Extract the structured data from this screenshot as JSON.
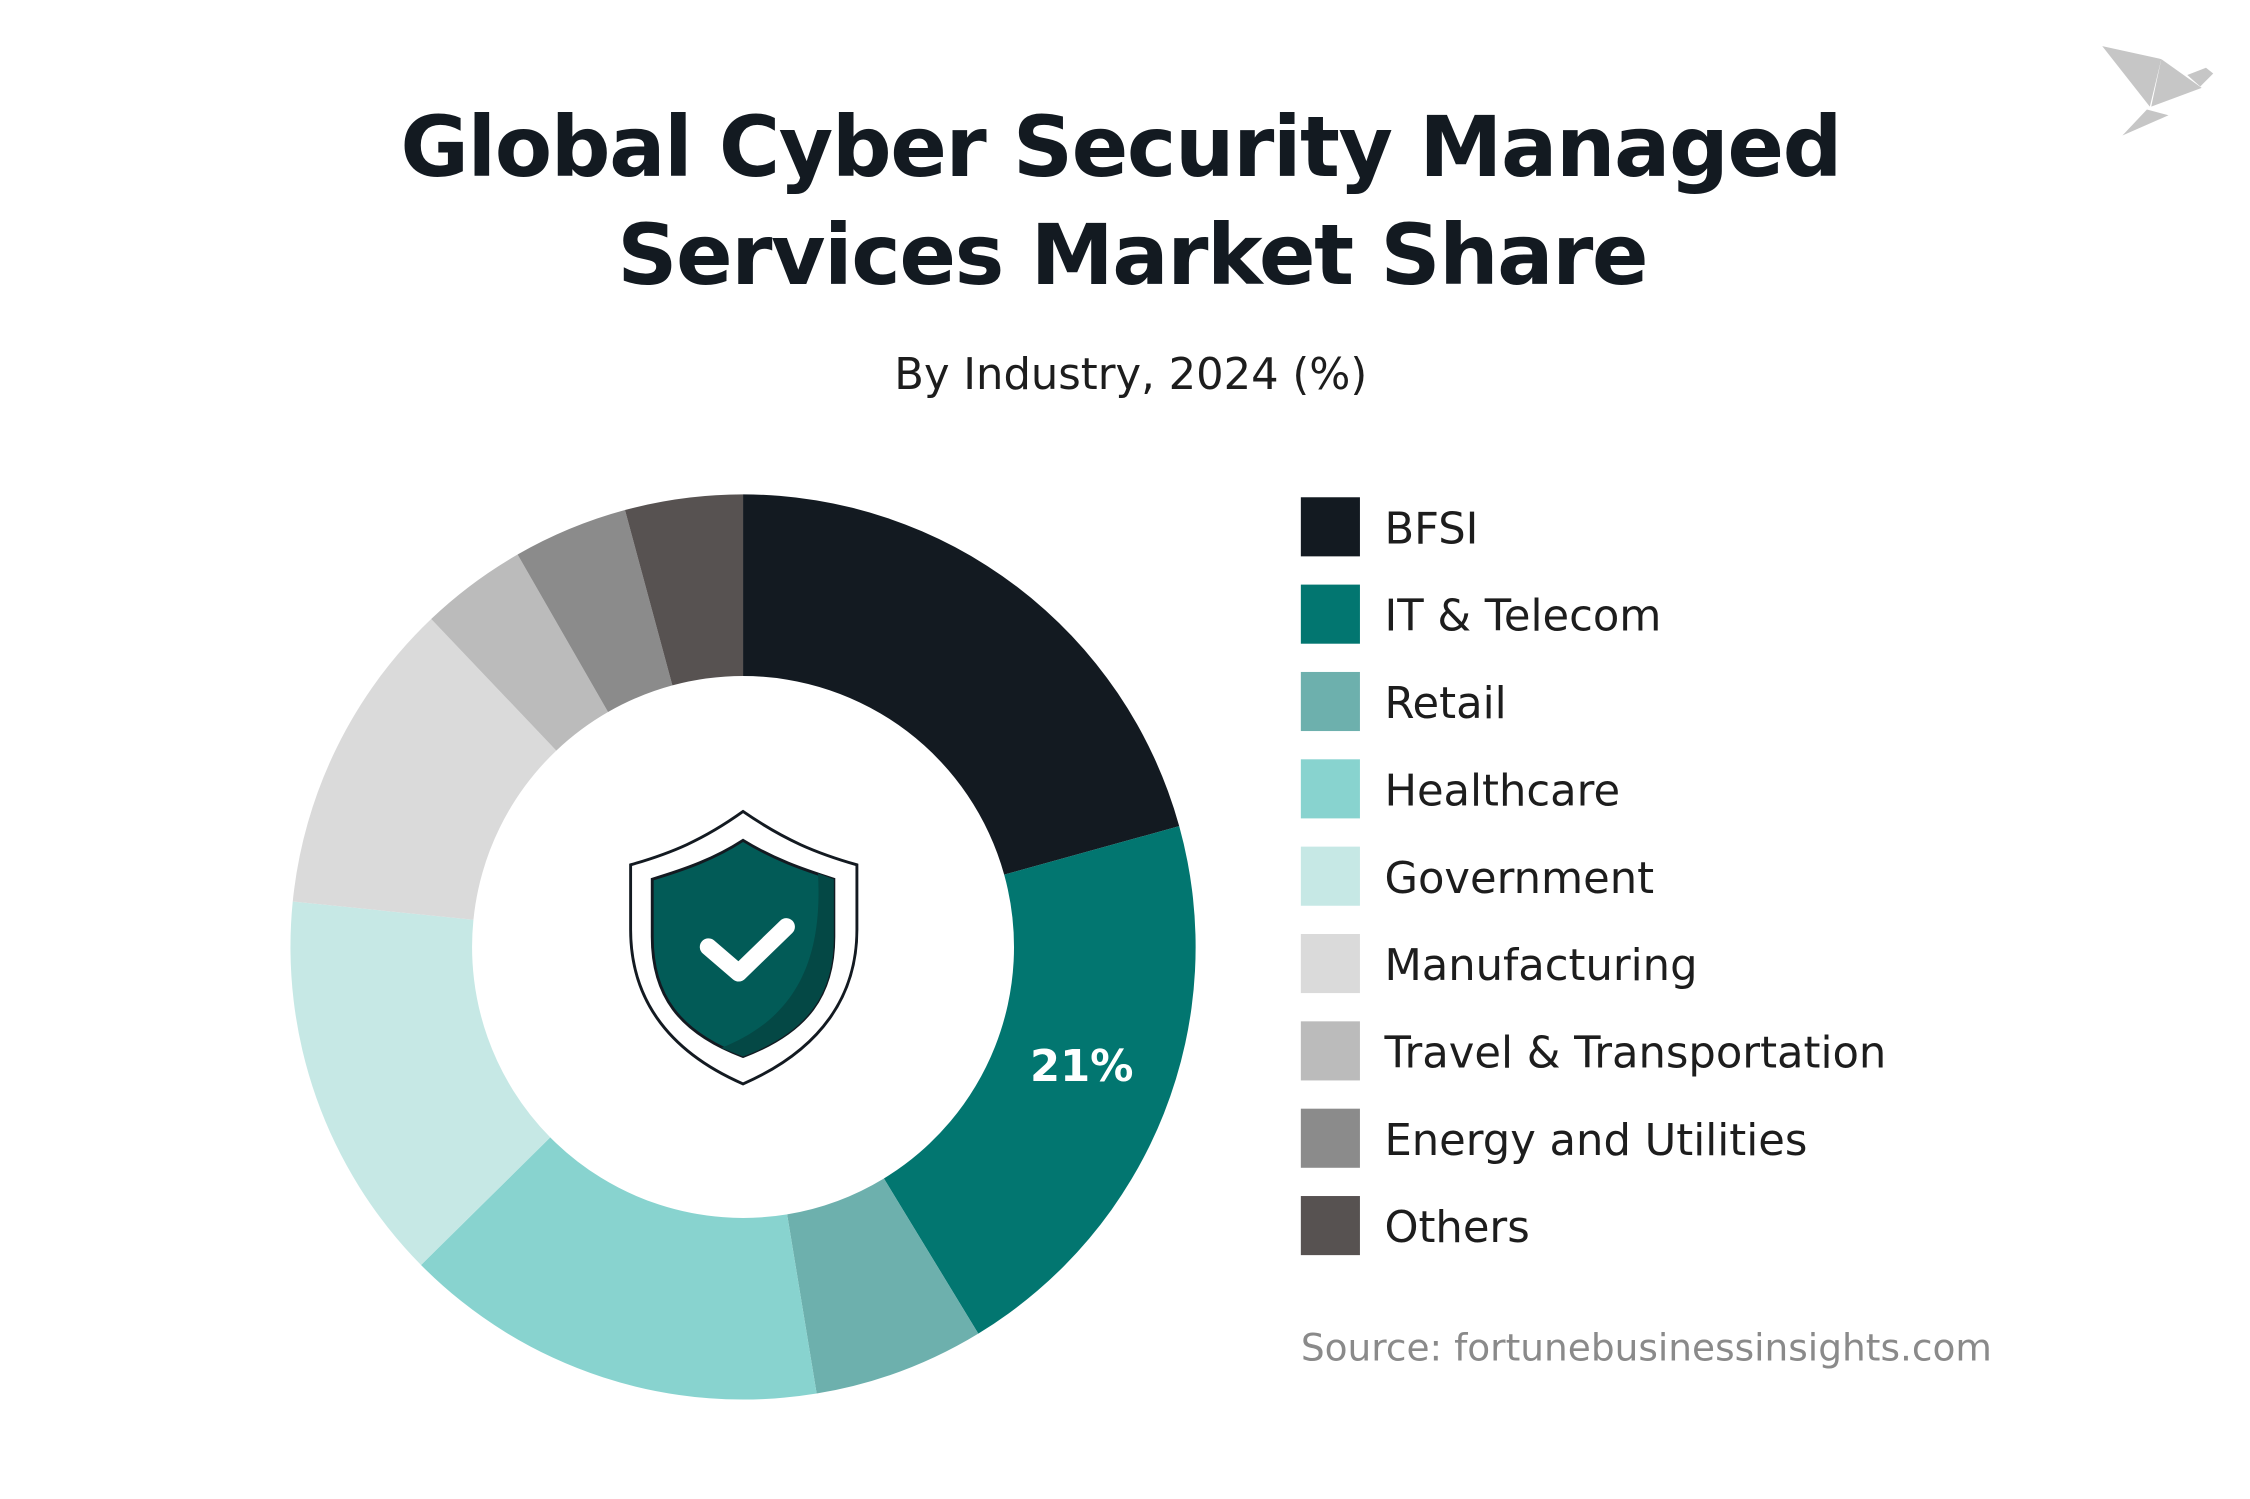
{
  "chart_data": {
    "type": "pie",
    "variant": "donut",
    "title": "Global Cyber Security Managed Services Market Share",
    "title_lines": [
      "Global Cyber Security Managed",
      "Services Market Share"
    ],
    "subtitle": "By Industry, 2024 (%)",
    "legend_position": "right",
    "categories": [
      "BFSI",
      "IT & Telecom",
      "Retail",
      "Healthcare",
      "Government",
      "Manufacturing",
      "Travel & Transportation",
      "Energy and Utilities",
      "Others"
    ],
    "values": [
      20.7,
      20.6,
      6.1,
      15.2,
      14.0,
      11.3,
      3.8,
      4.1,
      4.2
    ],
    "colors": [
      "#131a21",
      "#027670",
      "#6db0ad",
      "#88d3cf",
      "#c6e8e5",
      "#dadada",
      "#bbbbbb",
      "#8b8b8b",
      "#575251"
    ],
    "data_labels": [
      {
        "category": "IT & Telecom",
        "text": "21%"
      }
    ],
    "source": "Source: fortunebusinessinsights.com"
  },
  "center_icon": "shield-check-icon",
  "logo": "origami-bird-logo"
}
